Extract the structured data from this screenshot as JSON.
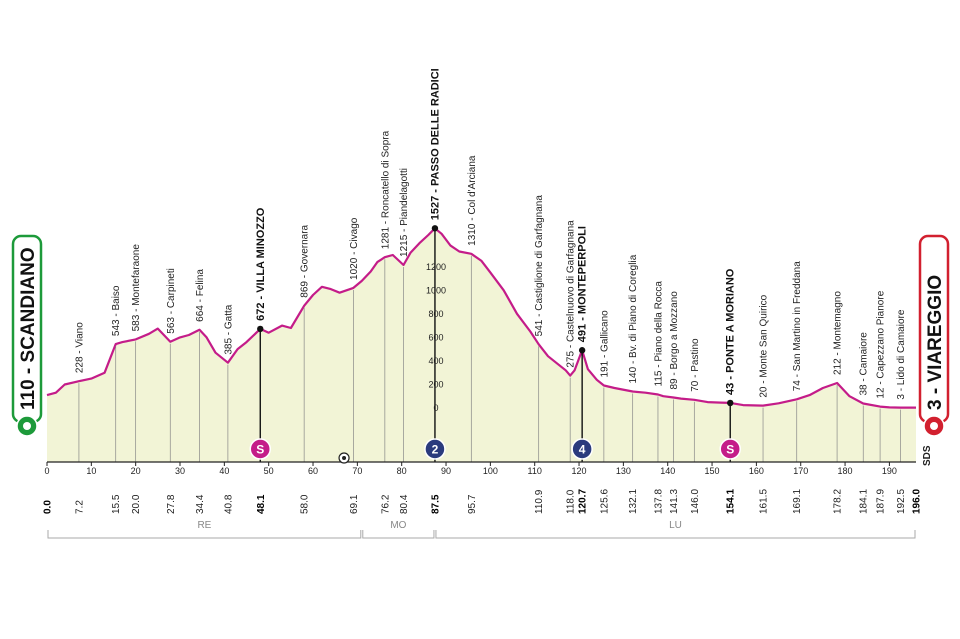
{
  "chart_data": {
    "type": "area",
    "xlim": [
      0,
      196
    ],
    "x_ticks": [
      0,
      10,
      20,
      30,
      40,
      50,
      60,
      70,
      80,
      90,
      100,
      110,
      120,
      130,
      140,
      150,
      160,
      170,
      180,
      190
    ],
    "y_ticks": [
      0,
      200,
      400,
      600,
      800,
      1000,
      1200,
      1400
    ],
    "ylim": [
      0,
      1600
    ],
    "colors": {
      "line": "#c41c89",
      "fill": "#f2f4d6",
      "start": "#1d9a3a",
      "finish": "#d2202f",
      "kom": "#2b3b7d"
    },
    "profile": {
      "x": [
        0,
        2,
        4,
        7.2,
        10,
        13,
        15.5,
        17,
        20,
        23,
        25,
        27.8,
        30,
        32,
        34.4,
        36,
        38,
        40.8,
        43,
        45,
        48.1,
        50,
        53,
        55,
        58,
        60,
        62,
        64,
        66,
        69.1,
        71,
        73,
        74.5,
        76.2,
        78,
        80.4,
        82,
        84,
        86,
        87.5,
        89,
        91,
        93,
        95.7,
        98,
        100,
        103,
        106,
        109,
        110.9,
        113,
        115,
        117,
        118.0,
        119,
        120.7,
        122,
        124,
        125.6,
        128,
        132.1,
        135,
        137.8,
        139,
        141.3,
        143,
        146.0,
        149,
        152,
        154.1,
        157,
        161.5,
        165,
        169.1,
        172,
        175,
        178.2,
        181,
        184.1,
        187.9,
        190,
        192.5,
        196.0
      ],
      "y": [
        110,
        130,
        200,
        228,
        250,
        300,
        543,
        560,
        583,
        630,
        675,
        563,
        600,
        620,
        664,
        600,
        470,
        385,
        500,
        560,
        672,
        640,
        700,
        680,
        869,
        960,
        1030,
        1010,
        980,
        1020,
        1080,
        1160,
        1240,
        1281,
        1300,
        1215,
        1320,
        1400,
        1470,
        1527,
        1480,
        1380,
        1330,
        1310,
        1250,
        1150,
        1000,
        800,
        650,
        541,
        440,
        380,
        320,
        275,
        320,
        491,
        330,
        240,
        191,
        170,
        140,
        130,
        115,
        100,
        89,
        80,
        70,
        50,
        46,
        43,
        25,
        20,
        40,
        74,
        110,
        170,
        212,
        100,
        38,
        12,
        5,
        3,
        3
      ]
    },
    "start": {
      "elev": "110",
      "name": "SCANDIANO",
      "km": "0.0"
    },
    "finish": {
      "elev": "3",
      "name": "VIAREGGIO",
      "km": "196.0"
    },
    "places": [
      {
        "km": 7.2,
        "elev": 228,
        "label": "228 - Viano",
        "bold": false
      },
      {
        "km": 15.5,
        "elev": 543,
        "label": "543 - Baiso",
        "bold": false
      },
      {
        "km": 20.0,
        "elev": 583,
        "label": "583 - Montefaraone",
        "bold": false
      },
      {
        "km": 27.8,
        "elev": 563,
        "label": "563 - Carpineti",
        "bold": false
      },
      {
        "km": 34.4,
        "elev": 664,
        "label": "664 - Felina",
        "bold": false
      },
      {
        "km": 40.8,
        "elev": 385,
        "label": "385 - Gatta",
        "bold": false
      },
      {
        "km": 48.1,
        "elev": 672,
        "label": "672 - VILLA MINOZZO",
        "bold": true
      },
      {
        "km": 58.0,
        "elev": 869,
        "label": "869 - Governara",
        "bold": false
      },
      {
        "km": 69.1,
        "elev": 1020,
        "label": "1020 - Civago",
        "bold": false
      },
      {
        "km": 76.2,
        "elev": 1281,
        "label": "1281 - Roncatello di Sopra",
        "bold": false
      },
      {
        "km": 80.4,
        "elev": 1215,
        "label": "1215 - Piandelagotti",
        "bold": false
      },
      {
        "km": 87.5,
        "elev": 1527,
        "label": "1527 - PASSO DELLE RADICI",
        "bold": true
      },
      {
        "km": 95.7,
        "elev": 1310,
        "label": "1310 - Col d'Arciana",
        "bold": false
      },
      {
        "km": 110.9,
        "elev": 541,
        "label": "541 - Castiglione di Garfagnana",
        "bold": false
      },
      {
        "km": 118.0,
        "elev": 275,
        "label": "275 - Castelnuovo di Garfagnana",
        "bold": false
      },
      {
        "km": 120.7,
        "elev": 491,
        "label": "491 - MONTEPERPOLI",
        "bold": true
      },
      {
        "km": 125.6,
        "elev": 191,
        "label": "191 - Gallicano",
        "bold": false
      },
      {
        "km": 132.1,
        "elev": 140,
        "label": "140 - Bv. di Piano di Coreglia",
        "bold": false
      },
      {
        "km": 137.8,
        "elev": 115,
        "label": "115 - Piano della Rocca",
        "bold": false
      },
      {
        "km": 141.3,
        "elev": 89,
        "label": "89 - Borgo a Mozzano",
        "bold": false
      },
      {
        "km": 146.0,
        "elev": 70,
        "label": "70 - Pastino",
        "bold": false
      },
      {
        "km": 154.1,
        "elev": 43,
        "label": "43 - PONTE A MORIANO",
        "bold": true
      },
      {
        "km": 161.5,
        "elev": 20,
        "label": "20 - Monte San Quirico",
        "bold": false
      },
      {
        "km": 169.1,
        "elev": 74,
        "label": "74 - San Martino in Freddana",
        "bold": false
      },
      {
        "km": 178.2,
        "elev": 212,
        "label": "212 - Montemagno",
        "bold": false
      },
      {
        "km": 184.1,
        "elev": 38,
        "label": "38 - Camaiore",
        "bold": false
      },
      {
        "km": 187.9,
        "elev": 12,
        "label": "12 - Capezzano Pianore",
        "bold": false
      },
      {
        "km": 192.5,
        "elev": 3,
        "label": "3 - Lido di Camaiore",
        "bold": false
      }
    ],
    "km_labels": [
      {
        "km": 0,
        "text": "0.0",
        "bold": true
      },
      {
        "km": 7.2,
        "text": "7.2",
        "bold": false
      },
      {
        "km": 15.5,
        "text": "15.5",
        "bold": false
      },
      {
        "km": 20.0,
        "text": "20.0",
        "bold": false
      },
      {
        "km": 27.8,
        "text": "27.8",
        "bold": false
      },
      {
        "km": 34.4,
        "text": "34.4",
        "bold": false
      },
      {
        "km": 40.8,
        "text": "40.8",
        "bold": false
      },
      {
        "km": 48.1,
        "text": "48.1",
        "bold": true
      },
      {
        "km": 58.0,
        "text": "58.0",
        "bold": false
      },
      {
        "km": 69.1,
        "text": "69.1",
        "bold": false
      },
      {
        "km": 76.2,
        "text": "76.2",
        "bold": false
      },
      {
        "km": 80.4,
        "text": "80.4",
        "bold": false
      },
      {
        "km": 87.5,
        "text": "87.5",
        "bold": true
      },
      {
        "km": 95.7,
        "text": "95.7",
        "bold": false
      },
      {
        "km": 110.9,
        "text": "110.9",
        "bold": false
      },
      {
        "km": 118.0,
        "text": "118.0",
        "bold": false
      },
      {
        "km": 120.7,
        "text": "120.7",
        "bold": true
      },
      {
        "km": 125.6,
        "text": "125.6",
        "bold": false
      },
      {
        "km": 132.1,
        "text": "132.1",
        "bold": false
      },
      {
        "km": 137.8,
        "text": "137.8",
        "bold": false
      },
      {
        "km": 141.3,
        "text": "141.3",
        "bold": false
      },
      {
        "km": 146.0,
        "text": "146.0",
        "bold": false
      },
      {
        "km": 154.1,
        "text": "154.1",
        "bold": true
      },
      {
        "km": 161.5,
        "text": "161.5",
        "bold": false
      },
      {
        "km": 169.1,
        "text": "169.1",
        "bold": false
      },
      {
        "km": 178.2,
        "text": "178.2",
        "bold": false
      },
      {
        "km": 184.1,
        "text": "184.1",
        "bold": false
      },
      {
        "km": 187.9,
        "text": "187.9",
        "bold": false
      },
      {
        "km": 192.5,
        "text": "192.5",
        "bold": false
      },
      {
        "km": 196.0,
        "text": "196.0",
        "bold": true
      }
    ],
    "sprints": [
      {
        "km": 48.1,
        "text": "S",
        "type": "sprint"
      },
      {
        "km": 87.5,
        "text": "2",
        "type": "kom"
      },
      {
        "km": 120.7,
        "text": "4",
        "type": "kom"
      },
      {
        "km": 154.1,
        "text": "S",
        "type": "sprint"
      }
    ],
    "feed_zone_km": 67,
    "sds_label": "SDS",
    "provinces": [
      {
        "label": "RE",
        "from": 0,
        "to": 71
      },
      {
        "label": "MO",
        "from": 71,
        "to": 87.5
      },
      {
        "label": "LU",
        "from": 87.5,
        "to": 196
      }
    ]
  }
}
